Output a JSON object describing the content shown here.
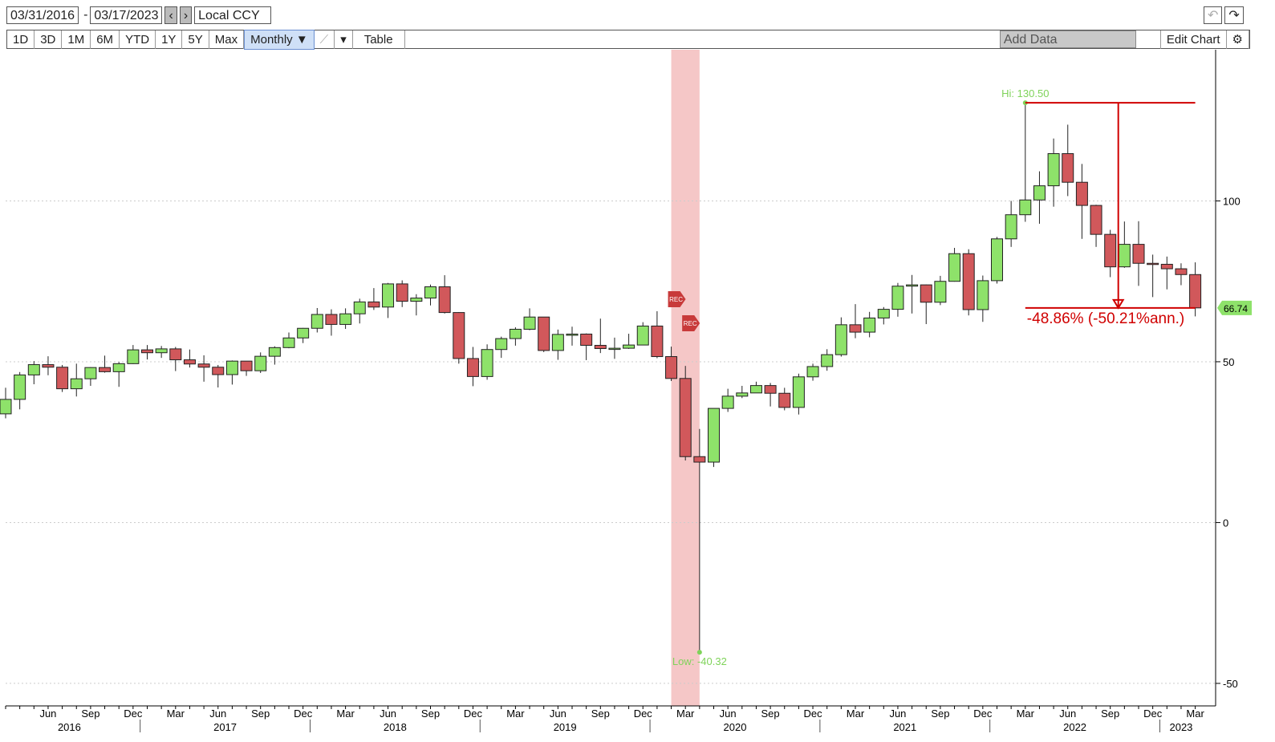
{
  "toolbar": {
    "start_date": "03/31/2016",
    "separator": "-",
    "end_date": "03/17/2023",
    "currency": "Local CCY",
    "ranges": [
      "1D",
      "3D",
      "1M",
      "6M",
      "YTD",
      "1Y",
      "5Y",
      "Max"
    ],
    "frequency": "Monthly ▼",
    "table": "Table",
    "add_data": "Add Data",
    "edit_chart": "Edit Chart"
  },
  "chart_data": {
    "type": "candlestick",
    "categories": [
      null,
      null,
      null,
      "Jun",
      null,
      null,
      "Sep",
      null,
      null,
      "Dec",
      null,
      null,
      "Mar",
      null,
      null,
      "Jun",
      null,
      null,
      "Sep",
      null,
      null,
      "Dec",
      null,
      null,
      "Mar",
      null,
      null,
      "Jun",
      null,
      null,
      "Sep",
      null,
      null,
      "Dec",
      null,
      null,
      "Mar",
      null,
      null,
      "Jun",
      null,
      null,
      "Sep",
      null,
      null,
      "Dec",
      null,
      null,
      "Mar",
      null,
      null,
      "Jun",
      null,
      null,
      "Sep",
      null,
      null,
      "Dec",
      null,
      null,
      "Mar",
      null,
      null,
      "Jun",
      null,
      null,
      "Sep",
      null,
      null,
      "Dec",
      null,
      null,
      "Mar",
      null,
      null,
      "Jun",
      null,
      null,
      "Sep",
      null,
      null,
      "Dec",
      null,
      null,
      "Mar"
    ],
    "years": [
      "2016",
      "2017",
      "2018",
      "2019",
      "2020",
      "2021",
      "2022",
      "2023"
    ],
    "open": [
      33.8,
      38.3,
      45.9,
      49.1,
      48.3,
      41.6,
      44.7,
      48.2,
      46.9,
      49.4,
      53.7,
      52.8,
      54.0,
      50.6,
      49.3,
      48.3,
      46.0,
      50.2,
      47.2,
      51.7,
      54.4,
      57.4,
      60.4,
      64.7,
      61.6,
      64.9,
      68.6,
      67.0,
      74.2,
      68.8,
      69.8,
      73.3,
      65.3,
      51.0,
      45.4,
      53.8,
      57.2,
      60.1,
      63.9,
      53.5,
      58.5,
      58.6,
      55.1,
      54.1,
      54.2,
      55.2,
      61.1,
      51.6,
      44.8,
      20.5,
      18.8,
      35.5,
      39.3,
      40.3,
      42.6,
      40.2,
      35.8,
      45.3,
      48.5,
      52.2,
      61.5,
      59.2,
      63.6,
      66.3,
      73.5,
      73.9,
      68.5,
      75.0,
      83.6,
      66.2,
      75.2,
      88.2,
      95.7,
      100.3,
      104.7,
      114.7,
      105.8,
      98.6,
      89.6,
      79.5,
      86.5,
      80.6,
      80.3,
      78.9,
      77.1
    ],
    "high": [
      41.9,
      46.8,
      50.2,
      51.7,
      49.0,
      49.4,
      48.3,
      51.9,
      49.9,
      55.2,
      55.2,
      54.9,
      54.6,
      53.8,
      52.0,
      49.0,
      50.4,
      50.2,
      52.9,
      54.8,
      59.1,
      60.5,
      66.7,
      66.3,
      66.6,
      69.6,
      72.9,
      74.5,
      75.3,
      71.0,
      74.0,
      76.9,
      65.4,
      54.6,
      55.4,
      57.8,
      60.7,
      66.6,
      63.9,
      60.0,
      60.9,
      58.8,
      63.4,
      57.5,
      58.7,
      62.3,
      65.7,
      54.7,
      48.7,
      29.1,
      35.3,
      41.6,
      42.5,
      43.8,
      43.4,
      41.9,
      46.3,
      49.4,
      53.9,
      63.8,
      67.9,
      65.5,
      67.0,
      74.5,
      76.98,
      74.0,
      76.7,
      85.4,
      84.97,
      76.8,
      88.8,
      100.0,
      130.5,
      109.2,
      119.4,
      123.7,
      111.5,
      98.8,
      91.0,
      93.6,
      93.7,
      83.3,
      82.7,
      80.6,
      80.9
    ],
    "low": [
      32.4,
      35.2,
      43.0,
      45.8,
      40.6,
      39.2,
      42.5,
      46.6,
      42.2,
      49.3,
      50.7,
      51.2,
      47.1,
      48.2,
      43.8,
      42.0,
      42.9,
      45.6,
      46.5,
      49.1,
      54.2,
      55.8,
      59.1,
      58.1,
      60.2,
      61.9,
      66.1,
      63.6,
      67.0,
      64.4,
      67.5,
      65.0,
      49.4,
      42.4,
      44.4,
      51.2,
      55.0,
      59.8,
      53.0,
      50.6,
      55.0,
      50.5,
      52.7,
      50.9,
      54.0,
      55.1,
      51.1,
      44.0,
      19.3,
      -40.32,
      17.3,
      34.4,
      38.7,
      40.3,
      36.1,
      34.9,
      33.6,
      44.1,
      47.2,
      51.6,
      57.3,
      57.6,
      61.6,
      64.0,
      65.0,
      61.7,
      67.6,
      74.9,
      64.4,
      62.4,
      74.3,
      85.7,
      93.5,
      92.9,
      98.2,
      101.5,
      88.2,
      85.7,
      76.3,
      79.2,
      73.6,
      70.1,
      72.5,
      73.8,
      64.1
    ],
    "close": [
      38.3,
      45.9,
      49.1,
      48.3,
      41.6,
      44.7,
      48.2,
      46.9,
      49.4,
      53.7,
      52.8,
      54.0,
      50.6,
      49.3,
      48.3,
      46.0,
      50.2,
      47.2,
      51.7,
      54.4,
      57.4,
      60.4,
      64.7,
      61.6,
      64.9,
      68.6,
      67.0,
      74.2,
      68.8,
      69.8,
      73.3,
      65.3,
      51.0,
      45.4,
      53.8,
      57.2,
      60.1,
      63.9,
      53.5,
      58.5,
      58.6,
      55.1,
      54.1,
      54.2,
      55.2,
      61.1,
      51.6,
      44.8,
      20.5,
      18.8,
      35.5,
      39.3,
      40.3,
      42.6,
      40.2,
      35.8,
      45.3,
      48.5,
      52.2,
      61.5,
      59.2,
      63.6,
      66.3,
      73.5,
      73.9,
      68.5,
      75.0,
      83.6,
      66.2,
      75.2,
      88.2,
      95.7,
      100.3,
      104.7,
      114.7,
      105.8,
      98.6,
      89.6,
      79.5,
      86.5,
      80.6,
      80.3,
      78.9,
      77.1,
      66.74
    ],
    "up_color": "#8ee26a",
    "down_color": "#d1585b",
    "ylim": [
      -57,
      147
    ],
    "yticks": [
      -50,
      0,
      50,
      100
    ],
    "grid": true,
    "hi_label": "Hi: 130.50",
    "low_label": "Low: -40.32",
    "change_label": "-48.86% (-50.21%ann.)",
    "markers": [
      "REC",
      "REC"
    ]
  }
}
